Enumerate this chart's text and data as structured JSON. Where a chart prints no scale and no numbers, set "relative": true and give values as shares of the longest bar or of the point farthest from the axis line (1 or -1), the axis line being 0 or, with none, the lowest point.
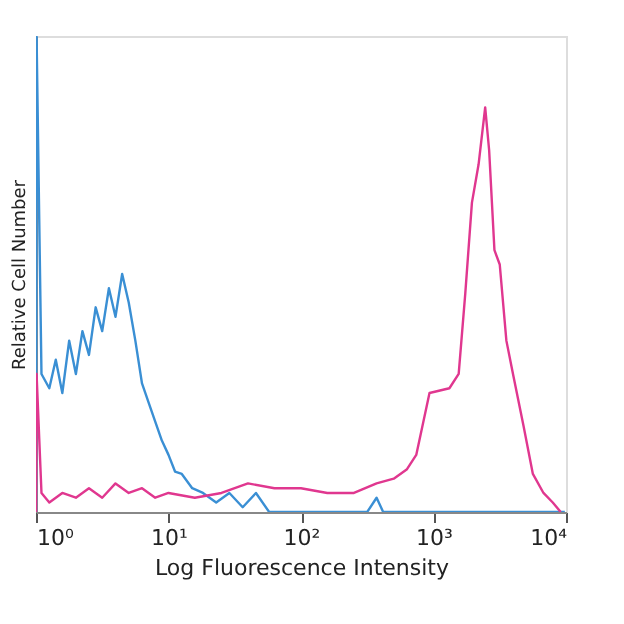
{
  "chart_data": {
    "type": "line",
    "xlabel": "Log Fluorescence Intensity",
    "ylabel": "Relative Cell Number",
    "relative": true,
    "log": "x",
    "grid": false,
    "xlim": [
      1,
      10000
    ],
    "xticks": [
      {
        "value": 1,
        "label": "10⁰"
      },
      {
        "value": 10,
        "label": "10¹"
      },
      {
        "value": 100,
        "label": "10²"
      },
      {
        "value": 1000,
        "label": "10³"
      },
      {
        "value": 10000,
        "label": "10⁴"
      }
    ],
    "series": [
      {
        "color": "#3a8fd4",
        "x": [
          1,
          1.01,
          1.1,
          1.26,
          1.41,
          1.58,
          1.78,
          2.0,
          2.24,
          2.51,
          2.82,
          3.16,
          3.55,
          3.98,
          4.47,
          5.01,
          5.62,
          6.31,
          7.08,
          7.94,
          8.91,
          10,
          11.2,
          12.6,
          15.1,
          18.2,
          22.9,
          28.8,
          36.3,
          45.7,
          57.5,
          316,
          372,
          417,
          9800
        ],
        "values": [
          0,
          1.0,
          0.29,
          0.26,
          0.32,
          0.25,
          0.36,
          0.29,
          0.38,
          0.33,
          0.43,
          0.38,
          0.47,
          0.41,
          0.5,
          0.44,
          0.36,
          0.27,
          0.23,
          0.19,
          0.15,
          0.12,
          0.085,
          0.08,
          0.05,
          0.04,
          0.02,
          0.04,
          0.01,
          0.04,
          0,
          0,
          0.03,
          0,
          0
        ]
      },
      {
        "color": "#e0378f",
        "x": [
          1,
          1.01,
          1.1,
          1.26,
          1.58,
          2.0,
          2.51,
          3.16,
          3.98,
          5.01,
          6.31,
          7.94,
          10,
          15.8,
          25.1,
          39.8,
          63.1,
          100,
          158,
          251,
          372,
          501,
          631,
          741,
          933,
          1318,
          1549,
          1738,
          1950,
          2188,
          2455,
          2630,
          2884,
          3162,
          3548,
          3981,
          4786,
          5623,
          6761,
          7943,
          9120
        ],
        "values": [
          0,
          0.29,
          0.04,
          0.02,
          0.04,
          0.03,
          0.05,
          0.03,
          0.06,
          0.04,
          0.05,
          0.03,
          0.04,
          0.03,
          0.04,
          0.06,
          0.05,
          0.05,
          0.04,
          0.04,
          0.06,
          0.07,
          0.09,
          0.12,
          0.25,
          0.26,
          0.29,
          0.46,
          0.65,
          0.73,
          0.85,
          0.76,
          0.55,
          0.52,
          0.36,
          0.29,
          0.18,
          0.08,
          0.04,
          0.02,
          0
        ]
      }
    ]
  }
}
